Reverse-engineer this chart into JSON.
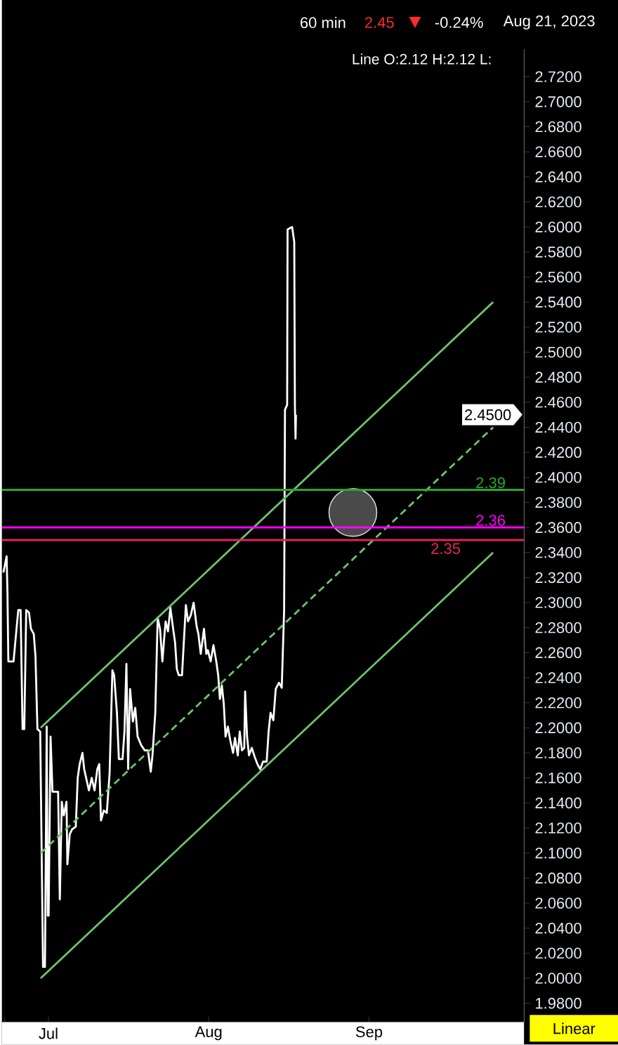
{
  "chart_data": {
    "type": "line",
    "title": "60 min",
    "subtitle": "Line O:2.12 H:2.12 L:",
    "annotations": [
      "2.45",
      "-0.24%",
      "Aug 21, 2023",
      "2.4500",
      "Linear"
    ],
    "xlim": [
      "2023-06-22",
      "2023-10-01"
    ],
    "xticks": [
      {
        "value": "2023-06-22T13:00",
        "label": null
      },
      {
        "value": "2023-07-01",
        "label": "Jul"
      },
      {
        "value": "2023-08-01",
        "label": "Aug"
      },
      {
        "value": "2023-09-01",
        "label": "Sep"
      }
    ],
    "ylim": [
      1.965,
      2.742
    ],
    "yticks": [
      {
        "value": 1.98,
        "label": "1.9800"
      },
      {
        "value": 2.0,
        "label": "2.0000"
      },
      {
        "value": 2.02,
        "label": "2.0200"
      },
      {
        "value": 2.04,
        "label": "2.0400"
      },
      {
        "value": 2.06,
        "label": "2.0600"
      },
      {
        "value": 2.08,
        "label": "2.0800"
      },
      {
        "value": 2.1,
        "label": "2.1000"
      },
      {
        "value": 2.12,
        "label": "2.1200"
      },
      {
        "value": 2.14,
        "label": "2.1400"
      },
      {
        "value": 2.16,
        "label": "2.1600"
      },
      {
        "value": 2.18,
        "label": "2.1800"
      },
      {
        "value": 2.2,
        "label": "2.2000"
      },
      {
        "value": 2.22,
        "label": "2.2200"
      },
      {
        "value": 2.24,
        "label": "2.2400"
      },
      {
        "value": 2.26,
        "label": "2.2600"
      },
      {
        "value": 2.28,
        "label": "2.2800"
      },
      {
        "value": 2.3,
        "label": "2.3000"
      },
      {
        "value": 2.32,
        "label": "2.3200"
      },
      {
        "value": 2.34,
        "label": "2.3400"
      },
      {
        "value": 2.36,
        "label": "2.3600"
      },
      {
        "value": 2.38,
        "label": "2.3800"
      },
      {
        "value": 2.4,
        "label": "2.4000"
      },
      {
        "value": 2.42,
        "label": "2.4200"
      },
      {
        "value": 2.44,
        "label": "2.4400"
      },
      {
        "value": 2.46,
        "label": "2.4600"
      },
      {
        "value": 2.48,
        "label": "2.4800"
      },
      {
        "value": 2.5,
        "label": "2.5000"
      },
      {
        "value": 2.52,
        "label": "2.5200"
      },
      {
        "value": 2.54,
        "label": "2.5400"
      },
      {
        "value": 2.56,
        "label": "2.5600"
      },
      {
        "value": 2.58,
        "label": "2.5800"
      },
      {
        "value": 2.6,
        "label": "2.6000"
      },
      {
        "value": 2.62,
        "label": "2.6200"
      },
      {
        "value": 2.64,
        "label": "2.6400"
      },
      {
        "value": 2.66,
        "label": "2.6600"
      },
      {
        "value": 2.68,
        "label": "2.6800"
      },
      {
        "value": 2.7,
        "label": "2.7000"
      },
      {
        "value": 2.72,
        "label": "2.7200"
      }
    ],
    "marker": "none",
    "series": [
      {
        "color": "#ffffff",
        "x": [
          "2023-06-22T07:00",
          "2023-06-22T22:00",
          "2023-06-23T02:00",
          "2023-06-23T06:00",
          "2023-06-24T06:00",
          "2023-06-25T04:00",
          "2023-06-25T15:00",
          "2023-06-26T00:00",
          "2023-06-26T08:00",
          "2023-06-26T17:00",
          "2023-06-27T06:00",
          "2023-06-27T15:00",
          "2023-06-28T04:00",
          "2023-06-28T12:00",
          "2023-06-28T21:00",
          "2023-06-29T10:00",
          "2023-06-29T23:00",
          "2023-06-30T08:00",
          "2023-06-30T16:00",
          "2023-06-30T21:00",
          "2023-07-01T01:00",
          "2023-07-01T10:00",
          "2023-07-01T19:00",
          "2023-07-02T21:00",
          "2023-07-03T05:00",
          "2023-07-03T14:00",
          "2023-07-03T23:00",
          "2023-07-04T12:00",
          "2023-07-04T16:00",
          "2023-07-05T03:00",
          "2023-07-05T14:00",
          "2023-07-06T07:00",
          "2023-07-06T16:00",
          "2023-07-07T01:00",
          "2023-07-07T14:00",
          "2023-07-07T22:00",
          "2023-07-08T07:00",
          "2023-07-08T20:00",
          "2023-07-09T09:00",
          "2023-07-09T22:00",
          "2023-07-10T11:00",
          "2023-07-10T20:00",
          "2023-07-11T04:00",
          "2023-07-11T17:00",
          "2023-07-12T07:00",
          "2023-07-12T20:00",
          "2023-07-13T09:00",
          "2023-07-13T17:00",
          "2023-07-14T06:00",
          "2023-07-14T15:00",
          "2023-07-15T08:00",
          "2023-07-15T17:00",
          "2023-07-16T02:00",
          "2023-07-16T10:00",
          "2023-07-16T19:00",
          "2023-07-17T08:00",
          "2023-07-17T19:00",
          "2023-07-18T06:00",
          "2023-07-18T23:00",
          "2023-07-19T15:00",
          "2023-07-20T06:00",
          "2023-07-20T19:00",
          "2023-07-21T03:00",
          "2023-07-21T16:00",
          "2023-07-22T03:00",
          "2023-07-22T14:00",
          "2023-07-23T01:00",
          "2023-07-23T10:00",
          "2023-07-23T16:00",
          "2023-07-24T03:00",
          "2023-07-24T14:00",
          "2023-07-25T03:00",
          "2023-07-25T12:00",
          "2023-07-25T20:00",
          "2023-07-26T05:00",
          "2023-07-26T20:00",
          "2023-07-27T14:00",
          "2023-07-28T00:00",
          "2023-07-28T13:00",
          "2023-07-29T02:00",
          "2023-07-29T16:00",
          "2023-07-30T00:00",
          "2023-07-30T11:00",
          "2023-07-31T02:00",
          "2023-07-31T13:00",
          "2023-07-31T20:00",
          "2023-08-01T09:00",
          "2023-08-01T22:00",
          "2023-08-02T11:00",
          "2023-08-02T20:00",
          "2023-08-03T04:00",
          "2023-08-03T13:00",
          "2023-08-03T22:00",
          "2023-08-04T06:00",
          "2023-08-04T17:00",
          "2023-08-05T04:00",
          "2023-08-05T17:00",
          "2023-08-06T02:00",
          "2023-08-06T15:00",
          "2023-08-07T00:00",
          "2023-08-07T10:00",
          "2023-08-07T21:00",
          "2023-08-08T01:00",
          "2023-08-08T10:00",
          "2023-08-08T19:00",
          "2023-08-09T08:00",
          "2023-08-09T21:00",
          "2023-08-10T10:00",
          "2023-08-10T23:00",
          "2023-08-11T12:00",
          "2023-08-12T05:00",
          "2023-08-12T14:00",
          "2023-08-12T23:00",
          "2023-08-13T12:00",
          "2023-08-13T23:00",
          "2023-08-14T14:00",
          "2023-08-15T03:00",
          "2023-08-15T14:00",
          "2023-08-15T18:00",
          "2023-08-16T04:00",
          "2023-08-16T06:00",
          "2023-08-17T03:00",
          "2023-08-17T13:00",
          "2023-08-17T16:00",
          "2023-08-17T19:00",
          "2023-08-17T21:00"
        ],
        "values": [
          2.324,
          2.337,
          2.307,
          2.253,
          2.253,
          2.294,
          2.294,
          2.199,
          2.199,
          2.294,
          2.292,
          2.279,
          2.275,
          2.257,
          2.199,
          2.197,
          2.009,
          2.009,
          2.201,
          2.05,
          2.05,
          2.193,
          2.149,
          2.149,
          2.063,
          2.141,
          2.13,
          2.141,
          2.091,
          2.115,
          2.119,
          2.121,
          2.16,
          2.171,
          2.18,
          2.167,
          2.16,
          2.15,
          2.16,
          2.15,
          2.167,
          2.171,
          2.126,
          2.134,
          2.132,
          2.164,
          2.246,
          2.242,
          2.212,
          2.175,
          2.175,
          2.197,
          2.251,
          2.167,
          2.231,
          2.205,
          2.216,
          2.193,
          2.186,
          2.182,
          2.182,
          2.165,
          2.178,
          2.212,
          2.288,
          2.279,
          2.253,
          2.273,
          2.285,
          2.277,
          2.296,
          2.279,
          2.268,
          2.247,
          2.242,
          2.242,
          2.298,
          2.285,
          2.29,
          2.3,
          2.281,
          2.275,
          2.259,
          2.279,
          2.259,
          2.262,
          2.253,
          2.266,
          2.253,
          2.242,
          2.223,
          2.234,
          2.219,
          2.193,
          2.201,
          2.19,
          2.18,
          2.192,
          2.178,
          2.197,
          2.182,
          2.184,
          2.229,
          2.193,
          2.178,
          2.184,
          2.177,
          2.171,
          2.167,
          2.173,
          2.173,
          2.197,
          2.212,
          2.206,
          2.231,
          2.236,
          2.232,
          2.294,
          2.454,
          2.458,
          2.598,
          2.6,
          2.588,
          2.458,
          2.431,
          2.45
        ]
      },
      {
        "color": "#6cc46c",
        "x": [
          "2023-06-29T12:00",
          "2023-09-25T00:00"
        ],
        "values": [
          2.2,
          2.54
        ]
      },
      {
        "color": "#6cc46c",
        "line_style": "dashed",
        "x": [
          "2023-06-29T12:00",
          "2023-09-25T00:00"
        ],
        "values": [
          2.1,
          2.44
        ]
      },
      {
        "color": "#6cc46c",
        "x": [
          "2023-06-29T12:00",
          "2023-09-25T00:00"
        ],
        "values": [
          2.0,
          2.34
        ]
      }
    ],
    "ref_lines": [
      {
        "axis": "y",
        "value": 2.39,
        "label": "2.39",
        "color": "#2ea62e"
      },
      {
        "axis": "y",
        "value": 2.36,
        "label": "2.36",
        "color": "#ff00ff"
      },
      {
        "axis": "y",
        "value": 2.35,
        "label": "2.35",
        "color": "#e0245a"
      }
    ]
  }
}
